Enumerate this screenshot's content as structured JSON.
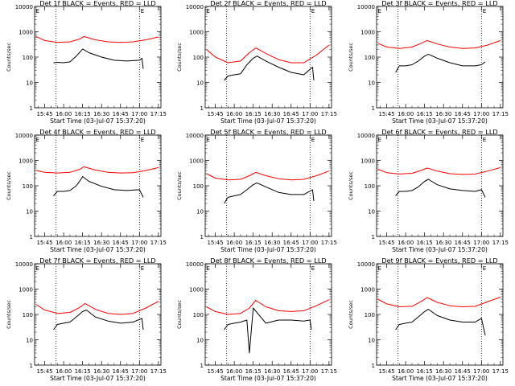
{
  "figure": {
    "xlabel": "Start Time (03-Jul-07 15:37:20)",
    "ylabel": "Counts/sec",
    "x_ticks": [
      "15:45",
      "16:00",
      "16:15",
      "16:30",
      "16:45",
      "17:00",
      "17:15"
    ],
    "y_ticks": [
      "1",
      "10",
      "100",
      "1000",
      "10000"
    ]
  },
  "colors": {
    "events": "#000000",
    "lld": "#ff0000"
  },
  "chart_data": [
    {
      "type": "line",
      "title": "Det 1f BLACK = Events, RED = LLD",
      "corner_marks": [
        "E",
        "E"
      ],
      "ylim": [
        1,
        10000
      ],
      "yscale": "log",
      "xlim": [
        "15:37",
        "17:17"
      ],
      "vlines": [
        "15:54",
        "17:00"
      ],
      "series": [
        {
          "name": "Events",
          "x": [
            "15:52",
            "15:55",
            "16:00",
            "16:05",
            "16:10",
            "16:13",
            "16:15",
            "16:20",
            "16:30",
            "16:40",
            "16:50",
            "17:00",
            "17:02",
            "17:03"
          ],
          "values": [
            60,
            62,
            60,
            65,
            110,
            160,
            210,
            150,
            100,
            75,
            70,
            75,
            90,
            35
          ]
        },
        {
          "name": "LLD",
          "x": [
            "15:38",
            "15:45",
            "15:55",
            "16:05",
            "16:13",
            "16:16",
            "16:25",
            "16:35",
            "16:45",
            "16:55",
            "17:05",
            "17:15"
          ],
          "values": [
            650,
            450,
            380,
            400,
            520,
            650,
            480,
            400,
            380,
            400,
            480,
            620
          ]
        }
      ]
    },
    {
      "type": "line",
      "title": "Det 2f BLACK = Events, RED = LLD",
      "corner_marks": [
        "E",
        "E"
      ],
      "ylim": [
        1,
        10000
      ],
      "yscale": "log",
      "xlim": [
        "15:37",
        "17:17"
      ],
      "vlines": [
        "15:54",
        "17:00"
      ],
      "series": [
        {
          "name": "Events",
          "x": [
            "15:52",
            "15:55",
            "16:00",
            "16:05",
            "16:10",
            "16:15",
            "16:18",
            "16:25",
            "16:35",
            "16:45",
            "16:55",
            "17:02",
            "17:03"
          ],
          "values": [
            12,
            18,
            20,
            22,
            50,
            90,
            110,
            70,
            40,
            25,
            20,
            40,
            12
          ]
        },
        {
          "name": "LLD",
          "x": [
            "15:38",
            "15:45",
            "15:55",
            "16:05",
            "16:12",
            "16:17",
            "16:25",
            "16:35",
            "16:45",
            "16:55",
            "17:05",
            "17:15"
          ],
          "values": [
            200,
            100,
            60,
            70,
            150,
            230,
            140,
            80,
            60,
            60,
            120,
            300
          ]
        }
      ]
    },
    {
      "type": "line",
      "title": "Det 3f BLACK = Events, RED = LLD",
      "corner_marks": [
        "E",
        "E"
      ],
      "ylim": [
        1,
        10000
      ],
      "yscale": "log",
      "xlim": [
        "15:37",
        "17:17"
      ],
      "vlines": [
        "15:54",
        "17:00"
      ],
      "series": [
        {
          "name": "Events",
          "x": [
            "15:52",
            "15:55",
            "16:00",
            "16:05",
            "16:10",
            "16:15",
            "16:18",
            "16:25",
            "16:35",
            "16:45",
            "16:55",
            "17:00",
            "17:03"
          ],
          "values": [
            25,
            45,
            45,
            50,
            70,
            110,
            130,
            90,
            60,
            45,
            45,
            50,
            65
          ]
        },
        {
          "name": "LLD",
          "x": [
            "15:38",
            "15:45",
            "15:55",
            "16:05",
            "16:12",
            "16:17",
            "16:25",
            "16:35",
            "16:45",
            "16:55",
            "17:05",
            "17:15"
          ],
          "values": [
            350,
            250,
            220,
            250,
            350,
            450,
            330,
            250,
            220,
            230,
            300,
            450
          ]
        }
      ]
    },
    {
      "type": "line",
      "title": "Det 4f BLACK = Events, RED = LLD",
      "corner_marks": [
        "E",
        "E"
      ],
      "ylim": [
        1,
        10000
      ],
      "yscale": "log",
      "xlim": [
        "15:37",
        "17:17"
      ],
      "vlines": [
        "15:54",
        "17:00"
      ],
      "series": [
        {
          "name": "Events",
          "x": [
            "15:52",
            "15:55",
            "16:00",
            "16:05",
            "16:10",
            "16:13",
            "16:15",
            "16:20",
            "16:30",
            "16:40",
            "16:50",
            "17:00",
            "17:03"
          ],
          "values": [
            40,
            60,
            60,
            65,
            100,
            160,
            230,
            150,
            95,
            70,
            65,
            70,
            35
          ]
        },
        {
          "name": "LLD",
          "x": [
            "15:38",
            "15:45",
            "15:55",
            "16:05",
            "16:13",
            "16:16",
            "16:25",
            "16:35",
            "16:45",
            "16:55",
            "17:05",
            "17:15"
          ],
          "values": [
            400,
            340,
            320,
            340,
            450,
            560,
            420,
            340,
            320,
            330,
            400,
            520
          ]
        }
      ]
    },
    {
      "type": "line",
      "title": "Det 5f BLACK = Events, RED = LLD",
      "corner_marks": [
        "E",
        "E"
      ],
      "ylim": [
        1,
        10000
      ],
      "yscale": "log",
      "xlim": [
        "15:37",
        "17:17"
      ],
      "vlines": [
        "15:54",
        "17:00"
      ],
      "series": [
        {
          "name": "Events",
          "x": [
            "15:52",
            "15:55",
            "16:00",
            "16:05",
            "16:10",
            "16:15",
            "16:18",
            "16:25",
            "16:35",
            "16:45",
            "16:55",
            "17:02",
            "17:03"
          ],
          "values": [
            20,
            35,
            40,
            45,
            70,
            110,
            130,
            90,
            55,
            45,
            45,
            70,
            25
          ]
        },
        {
          "name": "LLD",
          "x": [
            "15:38",
            "15:45",
            "15:55",
            "16:05",
            "16:12",
            "16:17",
            "16:25",
            "16:35",
            "16:45",
            "16:55",
            "17:05",
            "17:15"
          ],
          "values": [
            300,
            200,
            170,
            180,
            250,
            340,
            250,
            190,
            170,
            180,
            250,
            380
          ]
        }
      ]
    },
    {
      "type": "line",
      "title": "Det 6f BLACK = Events, RED = LLD",
      "corner_marks": [
        "E",
        "E"
      ],
      "ylim": [
        1,
        10000
      ],
      "yscale": "log",
      "xlim": [
        "15:37",
        "17:17"
      ],
      "vlines": [
        "15:54",
        "17:00"
      ],
      "series": [
        {
          "name": "Events",
          "x": [
            "15:52",
            "15:55",
            "16:00",
            "16:05",
            "16:10",
            "16:15",
            "16:18",
            "16:25",
            "16:35",
            "16:45",
            "16:55",
            "17:00",
            "17:03"
          ],
          "values": [
            40,
            60,
            60,
            65,
            90,
            150,
            180,
            110,
            75,
            65,
            60,
            70,
            35
          ]
        },
        {
          "name": "LLD",
          "x": [
            "15:38",
            "15:45",
            "15:55",
            "16:05",
            "16:12",
            "16:17",
            "16:25",
            "16:35",
            "16:45",
            "16:55",
            "17:05",
            "17:15"
          ],
          "values": [
            450,
            330,
            290,
            310,
            400,
            500,
            380,
            300,
            280,
            290,
            380,
            520
          ]
        }
      ]
    },
    {
      "type": "line",
      "title": "Det 7f BLACK = Events, RED = LLD",
      "corner_marks": [
        "E",
        "E"
      ],
      "ylim": [
        1,
        10000
      ],
      "yscale": "log",
      "xlim": [
        "15:37",
        "17:17"
      ],
      "vlines": [
        "15:54",
        "17:00"
      ],
      "series": [
        {
          "name": "Events",
          "x": [
            "15:52",
            "15:55",
            "16:00",
            "16:05",
            "16:10",
            "16:15",
            "16:18",
            "16:25",
            "16:35",
            "16:45",
            "16:55",
            "17:02",
            "17:03"
          ],
          "values": [
            25,
            40,
            45,
            50,
            80,
            130,
            150,
            80,
            55,
            45,
            50,
            70,
            25
          ]
        },
        {
          "name": "LLD",
          "x": [
            "15:38",
            "15:45",
            "15:55",
            "16:05",
            "16:12",
            "16:17",
            "16:25",
            "16:35",
            "16:45",
            "16:55",
            "17:05",
            "17:15"
          ],
          "values": [
            250,
            150,
            110,
            120,
            180,
            270,
            160,
            110,
            100,
            110,
            180,
            330
          ]
        }
      ]
    },
    {
      "type": "line",
      "title": "Det 8f BLACK = Events, RED = LLD",
      "corner_marks": [
        "E",
        "E"
      ],
      "ylim": [
        1,
        10000
      ],
      "yscale": "log",
      "xlim": [
        "15:37",
        "17:17"
      ],
      "vlines": [
        "15:54",
        "17:00"
      ],
      "series": [
        {
          "name": "Events",
          "x": [
            "15:52",
            "15:55",
            "16:00",
            "16:05",
            "16:10",
            "16:12",
            "16:15",
            "16:20",
            "16:25",
            "16:35",
            "16:45",
            "16:55",
            "17:00",
            "17:01"
          ],
          "values": [
            25,
            40,
            45,
            50,
            60,
            3,
            180,
            90,
            45,
            60,
            60,
            55,
            60,
            25
          ]
        },
        {
          "name": "LLD",
          "x": [
            "15:38",
            "15:45",
            "15:55",
            "16:05",
            "16:12",
            "16:17",
            "16:25",
            "16:35",
            "16:45",
            "16:55",
            "17:05",
            "17:15"
          ],
          "values": [
            200,
            130,
            100,
            110,
            180,
            360,
            200,
            140,
            130,
            140,
            220,
            380
          ]
        }
      ]
    },
    {
      "type": "line",
      "title": "Det 9f BLACK = Events, RED = LLD",
      "corner_marks": [
        "E",
        "E"
      ],
      "ylim": [
        1,
        10000
      ],
      "yscale": "log",
      "xlim": [
        "15:37",
        "17:17"
      ],
      "vlines": [
        "15:54",
        "17:00"
      ],
      "series": [
        {
          "name": "Events",
          "x": [
            "15:52",
            "15:55",
            "16:00",
            "16:05",
            "16:10",
            "16:15",
            "16:18",
            "16:25",
            "16:35",
            "16:45",
            "16:55",
            "17:00",
            "17:03"
          ],
          "values": [
            25,
            40,
            45,
            50,
            80,
            130,
            160,
            90,
            60,
            50,
            50,
            70,
            15
          ]
        },
        {
          "name": "LLD",
          "x": [
            "15:38",
            "15:45",
            "15:55",
            "16:05",
            "16:12",
            "16:17",
            "16:25",
            "16:35",
            "16:45",
            "16:55",
            "17:05",
            "17:15"
          ],
          "values": [
            400,
            260,
            200,
            210,
            320,
            460,
            300,
            220,
            200,
            210,
            320,
            480
          ]
        }
      ]
    }
  ]
}
